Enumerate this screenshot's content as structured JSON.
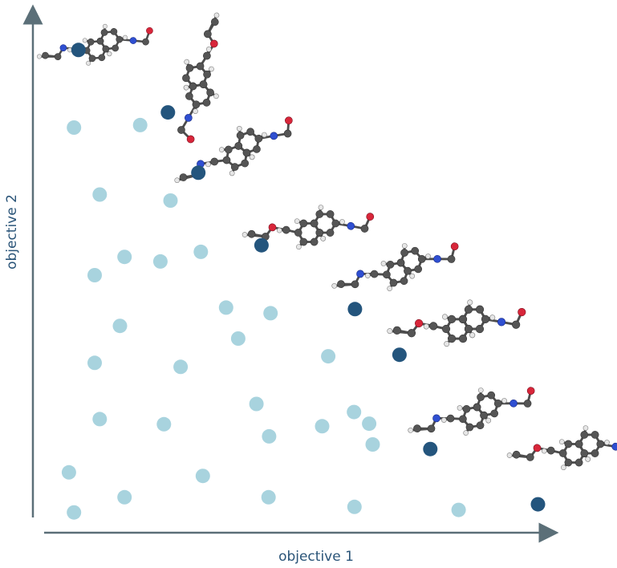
{
  "chart_data": {
    "type": "scatter",
    "title": "",
    "xlabel": "objective 1",
    "ylabel": "objective 2",
    "grid": false,
    "legend": "none",
    "xlim": [
      0,
      100
    ],
    "ylim": [
      0,
      100
    ],
    "colors": {
      "axis": "#5b6f78",
      "label": "#2a5478",
      "dominated": "#a8d3de",
      "pareto": "#24557d"
    },
    "series": [
      {
        "role": "dominated",
        "points": [
          [
            5.9,
            78.0
          ],
          [
            19.0,
            78.5
          ],
          [
            11.0,
            64.8
          ],
          [
            25.0,
            63.6
          ],
          [
            31.0,
            53.5
          ],
          [
            15.9,
            52.5
          ],
          [
            23.0,
            51.6
          ],
          [
            10.0,
            48.9
          ],
          [
            36.0,
            42.5
          ],
          [
            44.8,
            41.4
          ],
          [
            15.0,
            38.9
          ],
          [
            38.4,
            36.4
          ],
          [
            10.0,
            31.6
          ],
          [
            27.0,
            30.8
          ],
          [
            56.2,
            32.9
          ],
          [
            42.0,
            23.5
          ],
          [
            61.3,
            21.9
          ],
          [
            11.0,
            20.5
          ],
          [
            23.7,
            19.5
          ],
          [
            64.3,
            19.6
          ],
          [
            44.5,
            17.1
          ],
          [
            55.0,
            19.1
          ],
          [
            65.0,
            15.5
          ],
          [
            4.9,
            10.0
          ],
          [
            31.4,
            9.3
          ],
          [
            15.9,
            5.1
          ],
          [
            44.4,
            5.1
          ],
          [
            61.4,
            3.2
          ],
          [
            82.0,
            2.6
          ],
          [
            5.9,
            2.1
          ]
        ]
      },
      {
        "role": "pareto",
        "points": [
          [
            6.8,
            93.3
          ],
          [
            24.5,
            81.0
          ],
          [
            30.5,
            69.1
          ],
          [
            43.0,
            54.8
          ],
          [
            61.5,
            42.2
          ],
          [
            70.3,
            33.2
          ],
          [
            76.4,
            14.6
          ],
          [
            97.7,
            3.7
          ]
        ]
      }
    ],
    "molecule_icons": [
      "molecule-structure",
      "molecule-structure",
      "molecule-structure",
      "molecule-structure",
      "molecule-structure",
      "molecule-structure",
      "molecule-structure",
      "molecule-structure"
    ]
  }
}
